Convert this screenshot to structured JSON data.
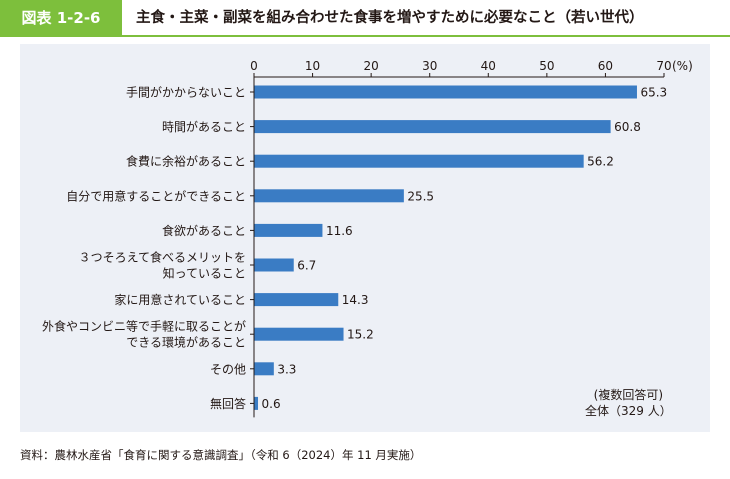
{
  "header": {
    "figure_number": "図表 1-2-6",
    "title": "主食・主菜・副菜を組み合わせた食事を増やすために必要なこと（若い世代）"
  },
  "chart_data": {
    "type": "bar",
    "orientation": "horizontal",
    "unit_label": "(%)",
    "xlim": [
      0,
      70
    ],
    "ticks": [
      0,
      10,
      20,
      30,
      40,
      50,
      60,
      70
    ],
    "categories": [
      [
        "手間がかからないこと"
      ],
      [
        "時間があること"
      ],
      [
        "食費に余裕があること"
      ],
      [
        "自分で用意することができること"
      ],
      [
        "食欲があること"
      ],
      [
        "３つそろえて食べるメリットを",
        "知っていること"
      ],
      [
        "家に用意されていること"
      ],
      [
        "外食やコンビニ等で手軽に取ることが",
        "できる環境があること"
      ],
      [
        "その他"
      ],
      [
        "無回答"
      ]
    ],
    "values": [
      65.3,
      60.8,
      56.2,
      25.5,
      11.6,
      6.7,
      14.3,
      15.2,
      3.3,
      0.6
    ],
    "value_labels": [
      "65.3",
      "60.8",
      "56.2",
      "25.5",
      "11.6",
      "6.7",
      "14.3",
      "15.2",
      "3.3",
      "0.6"
    ],
    "bar_color": "#3a7cc4",
    "axis_color": "#231815"
  },
  "note": {
    "line1": "(複数回答可)",
    "line2": "全体（329 人）"
  },
  "source": "資料：農林水産省「食育に関する意識調査」（令和 6（2024）年 11 月実施）",
  "colors": {
    "accent_green": "#7dbf3c",
    "panel_bg": "#edf0f6"
  }
}
